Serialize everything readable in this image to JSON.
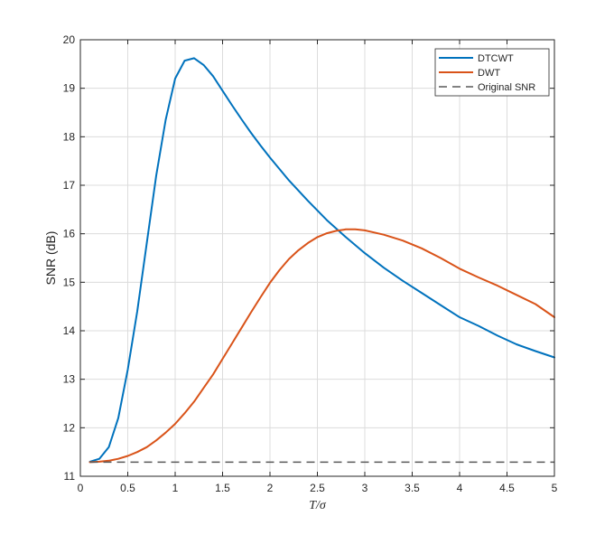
{
  "chart_data": {
    "type": "line",
    "title": "",
    "xlabel": "T/σ",
    "ylabel": "SNR (dB)",
    "xlim": [
      0,
      5
    ],
    "ylim": [
      11,
      20
    ],
    "xticks": [
      0,
      0.5,
      1,
      1.5,
      2,
      2.5,
      3,
      3.5,
      4,
      4.5,
      5
    ],
    "xtick_labels": [
      "0",
      "0.5",
      "1",
      "1.5",
      "2",
      "2.5",
      "3",
      "3.5",
      "4",
      "4.5",
      "5"
    ],
    "yticks": [
      11,
      12,
      13,
      14,
      15,
      16,
      17,
      18,
      19,
      20
    ],
    "ytick_labels": [
      "11",
      "12",
      "13",
      "14",
      "15",
      "16",
      "17",
      "18",
      "19",
      "20"
    ],
    "grid": true,
    "legend_position": "top-right",
    "series": [
      {
        "name": "DTCWT",
        "color": "#0072BD",
        "style": "solid",
        "x": [
          0.1,
          0.2,
          0.3,
          0.4,
          0.5,
          0.6,
          0.7,
          0.8,
          0.9,
          1.0,
          1.1,
          1.2,
          1.3,
          1.4,
          1.5,
          1.6,
          1.7,
          1.8,
          1.9,
          2.0,
          2.2,
          2.4,
          2.6,
          2.8,
          3.0,
          3.2,
          3.4,
          3.6,
          3.8,
          4.0,
          4.2,
          4.4,
          4.6,
          4.8,
          5.0
        ],
        "y": [
          11.3,
          11.36,
          11.6,
          12.2,
          13.2,
          14.4,
          15.8,
          17.2,
          18.35,
          19.2,
          19.57,
          19.62,
          19.48,
          19.25,
          18.95,
          18.65,
          18.36,
          18.08,
          17.82,
          17.57,
          17.1,
          16.68,
          16.28,
          15.93,
          15.6,
          15.3,
          15.03,
          14.78,
          14.53,
          14.28,
          14.1,
          13.9,
          13.72,
          13.58,
          13.45
        ]
      },
      {
        "name": "DWT",
        "color": "#D95319",
        "style": "solid",
        "x": [
          0.1,
          0.2,
          0.3,
          0.4,
          0.5,
          0.6,
          0.7,
          0.8,
          0.9,
          1.0,
          1.1,
          1.2,
          1.3,
          1.4,
          1.5,
          1.6,
          1.7,
          1.8,
          1.9,
          2.0,
          2.1,
          2.2,
          2.3,
          2.4,
          2.5,
          2.6,
          2.7,
          2.8,
          2.9,
          3.0,
          3.2,
          3.4,
          3.6,
          3.8,
          4.0,
          4.2,
          4.4,
          4.6,
          4.8,
          5.0
        ],
        "y": [
          11.29,
          11.3,
          11.32,
          11.36,
          11.42,
          11.5,
          11.6,
          11.74,
          11.9,
          12.08,
          12.3,
          12.54,
          12.82,
          13.1,
          13.42,
          13.74,
          14.06,
          14.38,
          14.69,
          14.99,
          15.25,
          15.48,
          15.66,
          15.81,
          15.93,
          16.01,
          16.06,
          16.09,
          16.09,
          16.07,
          15.98,
          15.86,
          15.7,
          15.5,
          15.28,
          15.1,
          14.93,
          14.74,
          14.55,
          14.28
        ]
      },
      {
        "name": "Original SNR",
        "color": "#595959",
        "style": "dashed",
        "x": [
          0.1,
          5.0
        ],
        "y": [
          11.29,
          11.29
        ]
      }
    ]
  }
}
